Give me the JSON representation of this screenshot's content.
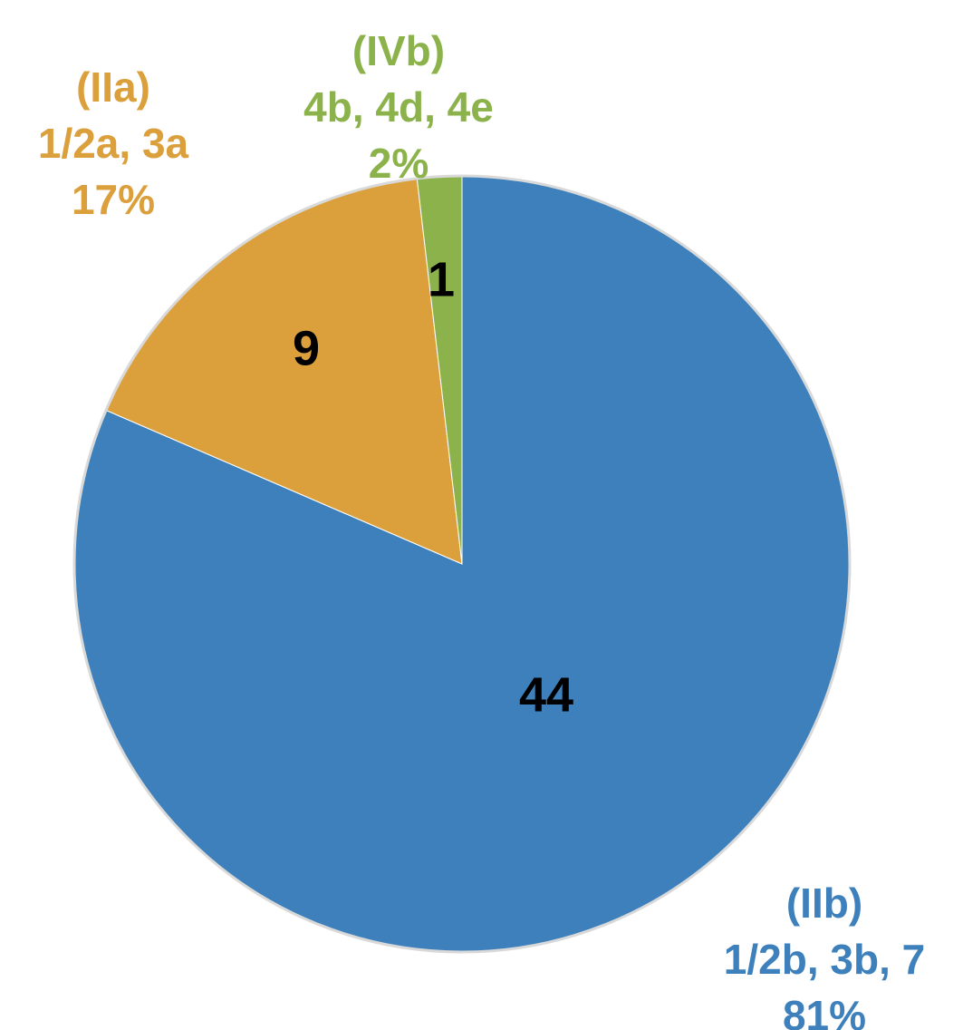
{
  "chart_data": {
    "type": "pie",
    "categories": [
      "(IIb)",
      "(IIa)",
      "(IVb)"
    ],
    "category_details": [
      "1/2b, 3b, 7",
      "1/2a, 3a",
      "4b, 4d, 4e"
    ],
    "values": [
      44,
      9,
      1
    ],
    "percentages": [
      {
        "value": 81,
        "label": "81%"
      },
      {
        "value": 17,
        "label": "17%"
      },
      {
        "value": 2,
        "label": "2%"
      }
    ],
    "colors": [
      "#3d80bb",
      "#dba03c",
      "#8cb24c"
    ]
  }
}
